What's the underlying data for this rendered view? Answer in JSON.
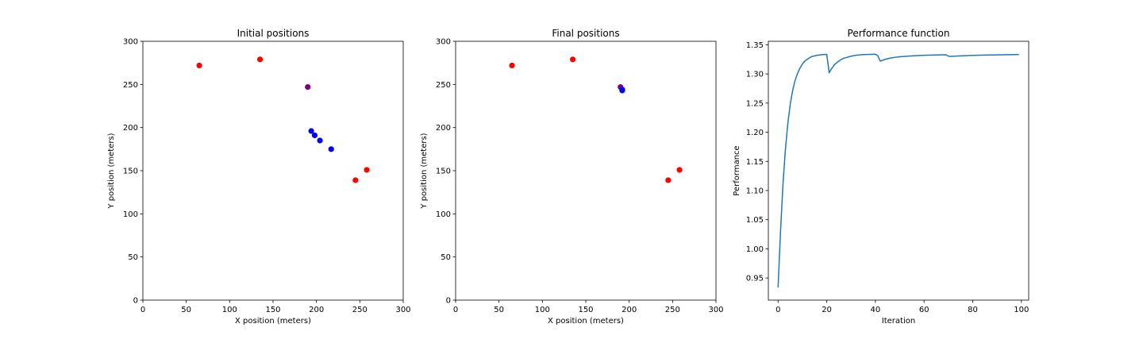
{
  "chart_data": [
    {
      "type": "scatter",
      "title": "Initial positions",
      "xlabel": "X position (meters)",
      "ylabel": "Y position (meters)",
      "xlim": [
        0,
        300
      ],
      "ylim": [
        0,
        300
      ],
      "xticks": [
        0,
        50,
        100,
        150,
        200,
        250,
        300
      ],
      "yticks": [
        0,
        50,
        100,
        150,
        200,
        250,
        300
      ],
      "grid": false,
      "points": [
        {
          "x": 65,
          "y": 272,
          "color": "#ff0000"
        },
        {
          "x": 135,
          "y": 279,
          "color": "#ff0000"
        },
        {
          "x": 190,
          "y": 247,
          "color": "#800080"
        },
        {
          "x": 194,
          "y": 196,
          "color": "#0000ff"
        },
        {
          "x": 198,
          "y": 191,
          "color": "#0000ff"
        },
        {
          "x": 204,
          "y": 185,
          "color": "#0000ff"
        },
        {
          "x": 217,
          "y": 175,
          "color": "#0000ff"
        },
        {
          "x": 245,
          "y": 139,
          "color": "#ff0000"
        },
        {
          "x": 258,
          "y": 151,
          "color": "#ff0000"
        }
      ]
    },
    {
      "type": "scatter",
      "title": "Final positions",
      "xlabel": "X position (meters)",
      "ylabel": "Y position (meters)",
      "xlim": [
        0,
        300
      ],
      "ylim": [
        0,
        300
      ],
      "xticks": [
        0,
        50,
        100,
        150,
        200,
        250,
        300
      ],
      "yticks": [
        0,
        50,
        100,
        150,
        200,
        250,
        300
      ],
      "grid": false,
      "points": [
        {
          "x": 65,
          "y": 272,
          "color": "#ff0000"
        },
        {
          "x": 135,
          "y": 279,
          "color": "#ff0000"
        },
        {
          "x": 190,
          "y": 247,
          "color": "#800080"
        },
        {
          "x": 192,
          "y": 244,
          "color": "#0000ff"
        },
        {
          "x": 192,
          "y": 243,
          "color": "#0000ff"
        },
        {
          "x": 245,
          "y": 139,
          "color": "#ff0000"
        },
        {
          "x": 258,
          "y": 151,
          "color": "#ff0000"
        }
      ]
    },
    {
      "type": "line",
      "title": "Performance function",
      "xlabel": "Iteration",
      "ylabel": "Performance",
      "xlim": [
        -4,
        103
      ],
      "ylim": [
        0.912,
        1.356
      ],
      "xticks": [
        0,
        20,
        40,
        60,
        80,
        100
      ],
      "yticks": [
        0.95,
        1.0,
        1.05,
        1.1,
        1.15,
        1.2,
        1.25,
        1.3,
        1.35
      ],
      "ytick_labels": [
        "0.95",
        "1.00",
        "1.05",
        "1.10",
        "1.15",
        "1.20",
        "1.25",
        "1.30",
        "1.35"
      ],
      "grid": false,
      "series": [
        {
          "color": "#1f77b4",
          "x": [
            0,
            1,
            2,
            3,
            4,
            5,
            6,
            7,
            8,
            9,
            10,
            11,
            12,
            13,
            14,
            15,
            16,
            17,
            18,
            19,
            20,
            21,
            22,
            23,
            24,
            25,
            26,
            27,
            28,
            30,
            32,
            34,
            36,
            38,
            40,
            41,
            42,
            44,
            46,
            48,
            50,
            55,
            60,
            65,
            69,
            70,
            71,
            75,
            80,
            85,
            90,
            95,
            99
          ],
          "y": [
            0.934,
            1.03,
            1.11,
            1.17,
            1.215,
            1.248,
            1.272,
            1.289,
            1.301,
            1.31,
            1.317,
            1.322,
            1.325,
            1.328,
            1.33,
            1.331,
            1.332,
            1.3325,
            1.333,
            1.3333,
            1.3335,
            1.302,
            1.309,
            1.315,
            1.319,
            1.322,
            1.325,
            1.327,
            1.328,
            1.3305,
            1.332,
            1.3328,
            1.3333,
            1.3336,
            1.3338,
            1.331,
            1.322,
            1.325,
            1.327,
            1.3285,
            1.3295,
            1.331,
            1.332,
            1.3325,
            1.3328,
            1.3305,
            1.3302,
            1.331,
            1.3318,
            1.3323,
            1.3327,
            1.333,
            1.3333
          ]
        }
      ]
    }
  ]
}
